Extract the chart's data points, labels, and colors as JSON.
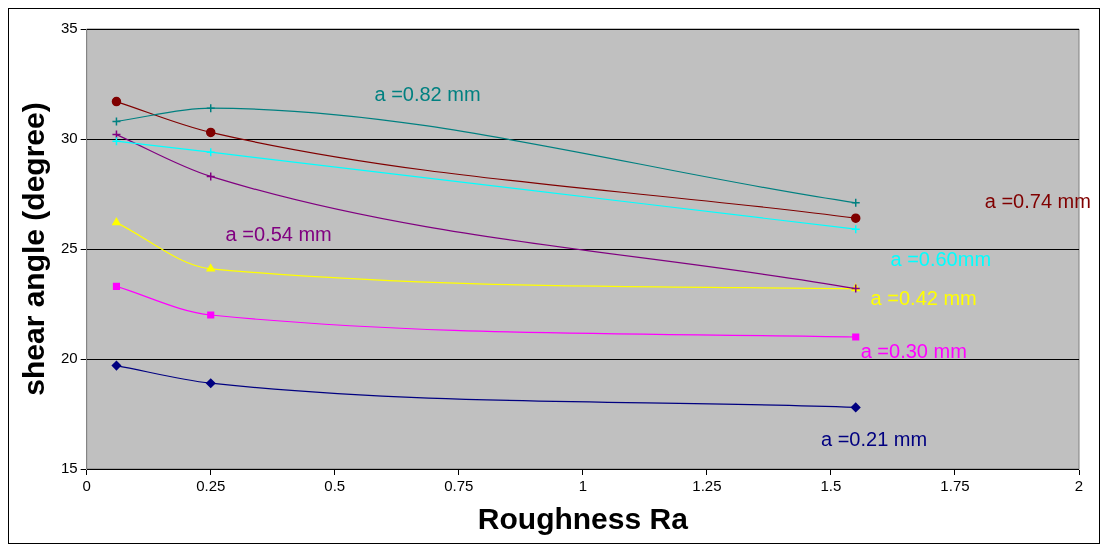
{
  "chart_data": {
    "type": "line",
    "xlabel": "Roughness Ra",
    "ylabel": "shear angle (degree)",
    "xlim": [
      0,
      2
    ],
    "xticks": [
      0,
      0.25,
      0.5,
      0.75,
      1,
      1.25,
      1.5,
      1.75,
      2
    ],
    "ylim": [
      15,
      35
    ],
    "yticks": [
      15,
      20,
      25,
      30,
      35
    ],
    "grid": "y",
    "legend": false,
    "series": [
      {
        "name": "a =0.82 mm",
        "color": "#008080",
        "marker": "cross",
        "x": [
          0.06,
          0.25,
          1.55
        ],
        "values": [
          30.8,
          31.4,
          27.1
        ]
      },
      {
        "name": "a =0.74 mm",
        "color": "#800000",
        "marker": "circle",
        "x": [
          0.06,
          0.25,
          1.55
        ],
        "values": [
          31.7,
          30.3,
          26.4
        ]
      },
      {
        "name": "a =0.60mm",
        "color": "#00ffff",
        "marker": "cross",
        "x": [
          0.06,
          0.25,
          1.55
        ],
        "values": [
          29.9,
          29.4,
          25.9
        ]
      },
      {
        "name": "a =0.54 mm",
        "color": "#800080",
        "marker": "cross",
        "x": [
          0.06,
          0.25,
          1.55
        ],
        "values": [
          30.2,
          28.3,
          23.2
        ]
      },
      {
        "name": "a =0.42 mm",
        "color": "#ffff00",
        "marker": "triangle",
        "x": [
          0.06,
          0.25,
          1.55
        ],
        "values": [
          26.2,
          24.1,
          23.2
        ]
      },
      {
        "name": "a =0.30 mm",
        "color": "#ff00ff",
        "marker": "square",
        "x": [
          0.06,
          0.25,
          1.55
        ],
        "values": [
          23.3,
          22.0,
          21.0
        ]
      },
      {
        "name": "a =0.21 mm",
        "color": "#000080",
        "marker": "diamond",
        "x": [
          0.06,
          0.25,
          1.55
        ],
        "values": [
          19.7,
          18.9,
          17.8
        ]
      }
    ]
  }
}
